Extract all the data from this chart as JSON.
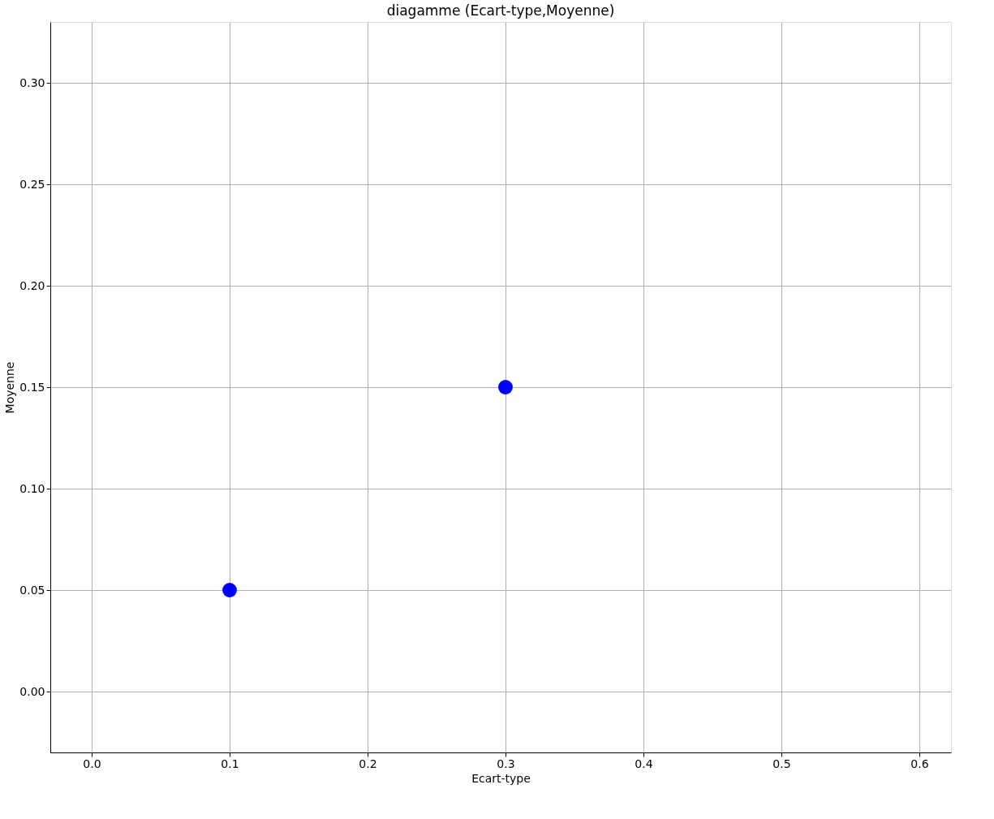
{
  "chart_data": {
    "type": "scatter",
    "title": "diagamme (Ecart-type,Moyenne)",
    "xlabel": "Ecart-type",
    "ylabel": "Moyenne",
    "x": [
      0.1,
      0.3
    ],
    "series": [
      {
        "color": "#0000ff",
        "values": [
          0.05,
          0.15
        ]
      }
    ],
    "xlim": [
      -0.03,
      0.623
    ],
    "xticks": [
      {
        "value": 0,
        "label": "0.0"
      },
      0.1,
      0.2,
      0.3,
      0.4,
      0.5,
      0.6
    ],
    "ylim": [
      -0.03,
      0.33
    ],
    "yticks": [
      {
        "value": 0,
        "label": "0.00"
      },
      0.05,
      {
        "value": 0.1,
        "label": "0.10"
      },
      0.15,
      {
        "value": 0.2,
        "label": "0.20"
      },
      0.25,
      {
        "value": 0.3,
        "label": "0.30"
      }
    ],
    "grid": true,
    "marker": "circle"
  }
}
